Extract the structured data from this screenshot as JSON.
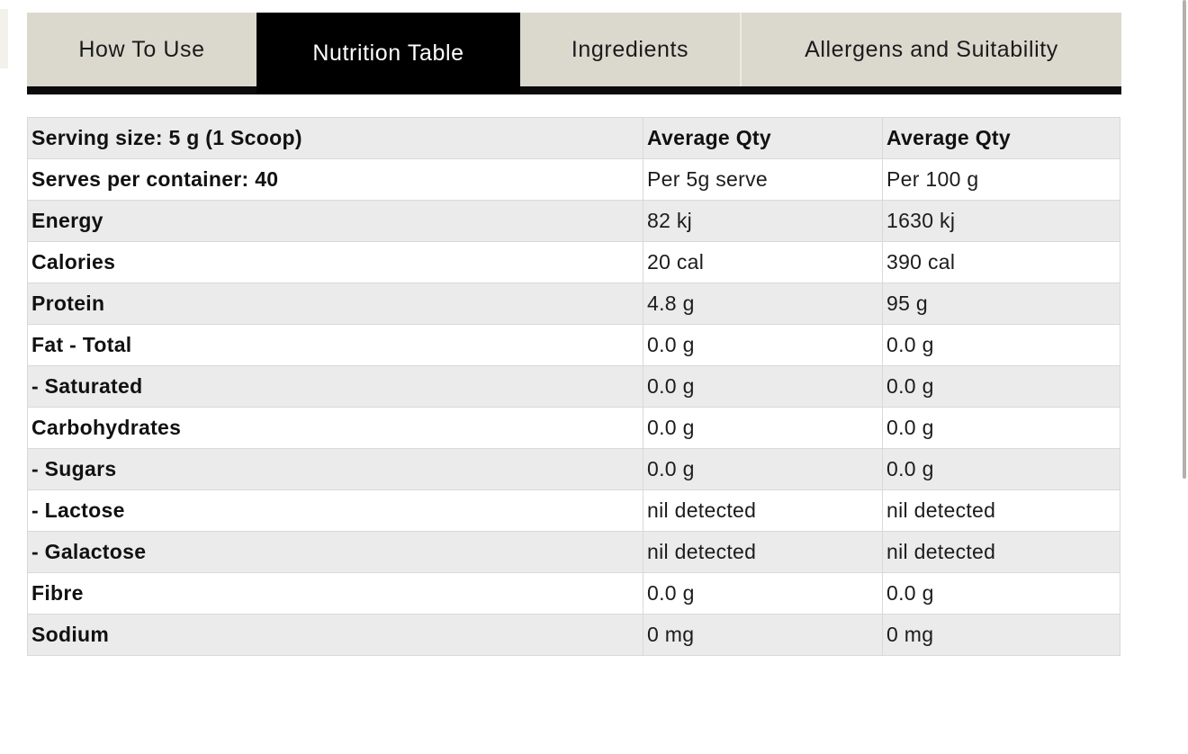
{
  "tabs": [
    {
      "label": "How To Use",
      "active": false
    },
    {
      "label": "Nutrition Table",
      "active": true
    },
    {
      "label": "Ingredients",
      "active": false
    },
    {
      "label": "Allergens and Suitability",
      "active": false
    }
  ],
  "table": {
    "rows": [
      {
        "label": "Serving size: 5 g (1 Scoop)",
        "per_serve": "Average Qty",
        "per_100g": "Average Qty"
      },
      {
        "label": "Serves per container: 40",
        "per_serve": "Per 5g serve",
        "per_100g": "Per 100 g"
      },
      {
        "label": "Energy",
        "per_serve": "82 kj",
        "per_100g": "1630 kj"
      },
      {
        "label": "Calories",
        "per_serve": "20 cal",
        "per_100g": "390 cal"
      },
      {
        "label": "Protein",
        "per_serve": "4.8 g",
        "per_100g": "95 g"
      },
      {
        "label": "Fat - Total",
        "per_serve": "0.0 g",
        "per_100g": "0.0 g"
      },
      {
        "label": "- Saturated",
        "per_serve": "0.0 g",
        "per_100g": "0.0 g"
      },
      {
        "label": "Carbohydrates",
        "per_serve": "0.0 g",
        "per_100g": "0.0 g"
      },
      {
        "label": "- Sugars",
        "per_serve": "0.0 g",
        "per_100g": "0.0 g"
      },
      {
        "label": "- Lactose",
        "per_serve": "nil detected",
        "per_100g": "nil detected"
      },
      {
        "label": "- Galactose",
        "per_serve": "nil detected",
        "per_100g": "nil detected"
      },
      {
        "label": "Fibre",
        "per_serve": "0.0 g",
        "per_100g": "0.0 g"
      },
      {
        "label": "Sodium",
        "per_serve": "0 mg",
        "per_100g": "0 mg"
      }
    ]
  },
  "colors": {
    "active_tab_bg": "#000000",
    "active_tab_text": "#ffffff",
    "inactive_tab_bg": "#dbd9ce",
    "row_alt_bg": "#ebebeb",
    "table_border": "#d9d9d9",
    "scrollbar_thumb": "#b4b0aa"
  }
}
